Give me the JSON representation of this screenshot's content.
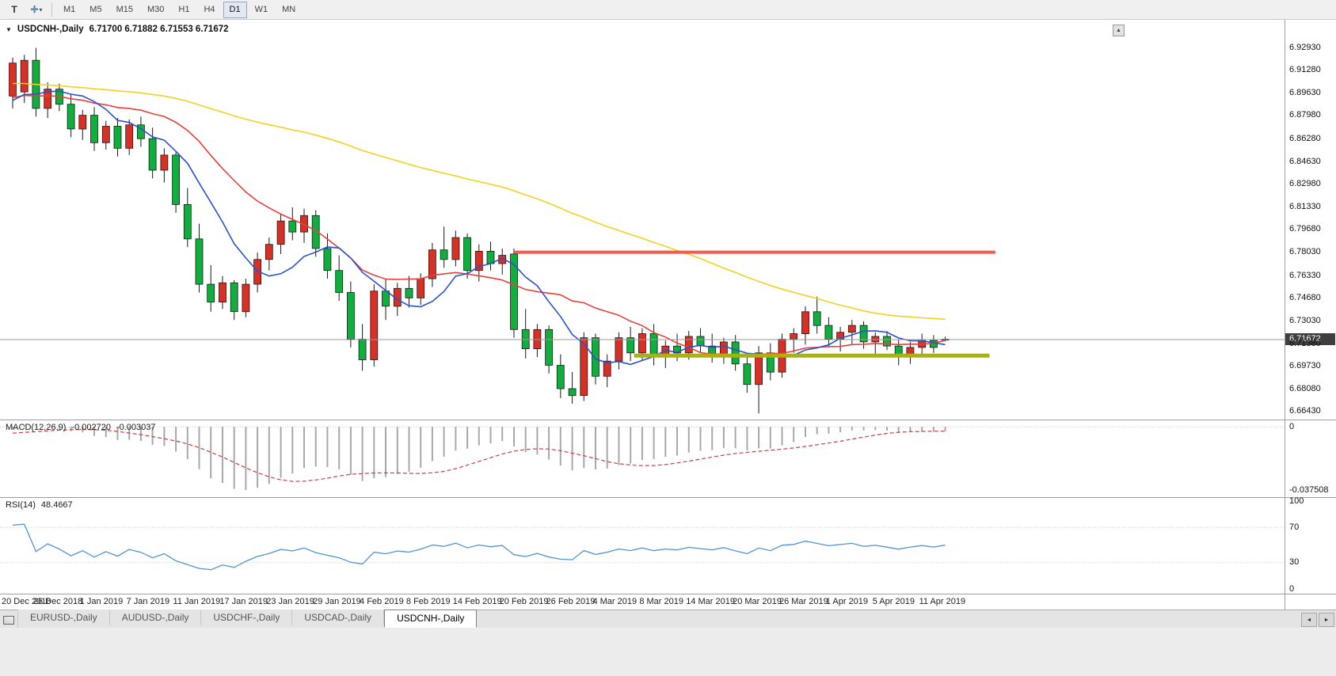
{
  "toolbar": {
    "pointer_tool_glyph": "T",
    "draw_tool_glyph": "✛",
    "dropdown_glyph": "▾",
    "timeframes": [
      "M1",
      "M5",
      "M15",
      "M30",
      "H1",
      "H4",
      "D1",
      "W1",
      "MN"
    ],
    "active_timeframe": "D1"
  },
  "chart": {
    "menu_glyph": "▼",
    "shift_marker_glyph": "▲",
    "title_symbol": "USDCNH-,Daily",
    "title_ohlc": "6.71700 6.71882 6.71553 6.71672",
    "price_axis": {
      "labels": [
        "6.92930",
        "6.91280",
        "6.89630",
        "6.87980",
        "6.86280",
        "6.84630",
        "6.82980",
        "6.81330",
        "6.79680",
        "6.78030",
        "6.76330",
        "6.74680",
        "6.73030",
        "6.71380",
        "6.69730",
        "6.68080",
        "6.66430"
      ],
      "badge": "6.71672"
    }
  },
  "macd": {
    "name": "MACD(12,26,9)",
    "value_main": "-0.002720",
    "value_signal": "-0.003037",
    "axis_zero": "0",
    "axis_min": "-0.037508"
  },
  "rsi": {
    "name": "RSI(14)",
    "value": "48.4667",
    "axis": [
      "100",
      "70",
      "30",
      "0"
    ]
  },
  "time_axis": {
    "labels": [
      "20 Dec 2018",
      "26 Dec 2018",
      "1 Jan 2019",
      "7 Jan 2019",
      "11 Jan 2019",
      "17 Jan 2019",
      "23 Jan 2019",
      "29 Jan 2019",
      "4 Feb 2019",
      "8 Feb 2019",
      "14 Feb 2019",
      "20 Feb 2019",
      "26 Feb 2019",
      "4 Mar 2019",
      "8 Mar 2019",
      "14 Mar 2019",
      "20 Mar 2019",
      "26 Mar 2019",
      "1 Apr 2019",
      "5 Apr 2019",
      "11 Apr 2019"
    ]
  },
  "tabs": {
    "items": [
      "EURUSD-,Daily",
      "AUDUSD-,Daily",
      "USDCHF-,Daily",
      "USDCAD-,Daily",
      "USDCNH-,Daily"
    ],
    "active": "USDCNH-,Daily",
    "scroll_left_glyph": "◄",
    "scroll_right_glyph": "►"
  },
  "chart_data": {
    "type": "candlestick",
    "symbol": "USDCNH",
    "timeframe": "Daily",
    "last": {
      "open": 6.717,
      "high": 6.71882,
      "low": 6.71553,
      "close": 6.71672
    },
    "last_price": 6.71672,
    "price_range": [
      6.6585,
      6.9495
    ],
    "time_axis_label_step": 4,
    "ohlc": [
      [
        6.894,
        6.922,
        6.885,
        6.918
      ],
      [
        6.897,
        6.924,
        6.889,
        6.92
      ],
      [
        6.92,
        6.929,
        6.879,
        6.885
      ],
      [
        6.885,
        6.904,
        6.878,
        6.899
      ],
      [
        6.899,
        6.903,
        6.883,
        6.888
      ],
      [
        6.888,
        6.895,
        6.864,
        6.87
      ],
      [
        6.87,
        6.884,
        6.862,
        6.88
      ],
      [
        6.88,
        6.886,
        6.854,
        6.86
      ],
      [
        6.86,
        6.876,
        6.855,
        6.872
      ],
      [
        6.872,
        6.878,
        6.85,
        6.856
      ],
      [
        6.856,
        6.877,
        6.851,
        6.873
      ],
      [
        6.873,
        6.879,
        6.857,
        6.863
      ],
      [
        6.863,
        6.871,
        6.834,
        6.84
      ],
      [
        6.84,
        6.856,
        6.831,
        6.851
      ],
      [
        6.851,
        6.853,
        6.809,
        6.815
      ],
      [
        6.815,
        6.827,
        6.784,
        6.79
      ],
      [
        6.79,
        6.801,
        6.751,
        6.757
      ],
      [
        6.757,
        6.771,
        6.737,
        6.744
      ],
      [
        6.744,
        6.763,
        6.739,
        6.758
      ],
      [
        6.758,
        6.76,
        6.731,
        6.737
      ],
      [
        6.737,
        6.761,
        6.733,
        6.757
      ],
      [
        6.757,
        6.78,
        6.751,
        6.775
      ],
      [
        6.775,
        6.791,
        6.767,
        6.786
      ],
      [
        6.786,
        6.808,
        6.779,
        6.803
      ],
      [
        6.803,
        6.813,
        6.789,
        6.795
      ],
      [
        6.795,
        6.812,
        6.787,
        6.807
      ],
      [
        6.807,
        6.811,
        6.777,
        6.783
      ],
      [
        6.783,
        6.794,
        6.761,
        6.767
      ],
      [
        6.767,
        6.778,
        6.745,
        6.751
      ],
      [
        6.751,
        6.759,
        6.711,
        6.717
      ],
      [
        6.717,
        6.728,
        6.694,
        6.702
      ],
      [
        6.702,
        6.757,
        6.697,
        6.752
      ],
      [
        6.752,
        6.761,
        6.731,
        6.741
      ],
      [
        6.741,
        6.758,
        6.734,
        6.754
      ],
      [
        6.754,
        6.763,
        6.74,
        6.747
      ],
      [
        6.747,
        6.765,
        6.742,
        6.761
      ],
      [
        6.761,
        6.787,
        6.755,
        6.782
      ],
      [
        6.782,
        6.799,
        6.769,
        6.775
      ],
      [
        6.775,
        6.796,
        6.77,
        6.791
      ],
      [
        6.791,
        6.794,
        6.761,
        6.767
      ],
      [
        6.767,
        6.786,
        6.759,
        6.781
      ],
      [
        6.781,
        6.788,
        6.767,
        6.772
      ],
      [
        6.772,
        6.783,
        6.764,
        6.778
      ],
      [
        6.779,
        6.783,
        6.718,
        6.724
      ],
      [
        6.724,
        6.739,
        6.703,
        6.71
      ],
      [
        6.71,
        6.728,
        6.704,
        6.724
      ],
      [
        6.724,
        6.727,
        6.692,
        6.698
      ],
      [
        6.698,
        6.706,
        6.674,
        6.681
      ],
      [
        6.681,
        6.693,
        6.67,
        6.676
      ],
      [
        6.676,
        6.722,
        6.672,
        6.718
      ],
      [
        6.718,
        6.721,
        6.684,
        6.69
      ],
      [
        6.69,
        6.706,
        6.682,
        6.701
      ],
      [
        6.701,
        6.722,
        6.695,
        6.718
      ],
      [
        6.718,
        6.726,
        6.701,
        6.707
      ],
      [
        6.707,
        6.725,
        6.702,
        6.721
      ],
      [
        6.721,
        6.728,
        6.698,
        6.704
      ],
      [
        6.704,
        6.716,
        6.696,
        6.712
      ],
      [
        6.712,
        6.721,
        6.701,
        6.707
      ],
      [
        6.707,
        6.723,
        6.702,
        6.719
      ],
      [
        6.719,
        6.725,
        6.707,
        6.712
      ],
      [
        6.712,
        6.721,
        6.7,
        6.706
      ],
      [
        6.706,
        6.718,
        6.699,
        6.715
      ],
      [
        6.715,
        6.72,
        6.694,
        6.699
      ],
      [
        6.699,
        6.705,
        6.678,
        6.684
      ],
      [
        6.684,
        6.712,
        6.663,
        6.707
      ],
      [
        6.707,
        6.714,
        6.687,
        6.693
      ],
      [
        6.693,
        6.721,
        6.689,
        6.717
      ],
      [
        6.717,
        6.725,
        6.707,
        6.721
      ],
      [
        6.721,
        6.741,
        6.713,
        6.737
      ],
      [
        6.737,
        6.748,
        6.721,
        6.727
      ],
      [
        6.727,
        6.733,
        6.711,
        6.717
      ],
      [
        6.717,
        6.726,
        6.708,
        6.722
      ],
      [
        6.722,
        6.731,
        6.713,
        6.727
      ],
      [
        6.727,
        6.73,
        6.71,
        6.715
      ],
      [
        6.715,
        6.722,
        6.705,
        6.719
      ],
      [
        6.719,
        6.723,
        6.709,
        6.712
      ],
      [
        6.712,
        6.717,
        6.698,
        6.704
      ],
      [
        6.704,
        6.715,
        6.699,
        6.711
      ],
      [
        6.711,
        6.721,
        6.704,
        6.716
      ],
      [
        6.716,
        6.72,
        6.707,
        6.711
      ],
      [
        6.717,
        6.71882,
        6.71553,
        6.71672
      ]
    ],
    "moving_averages": [
      {
        "name": "fast",
        "period": 8,
        "color": "#2a52cc"
      },
      {
        "name": "medium",
        "period": 17,
        "color": "#e8413a"
      },
      {
        "name": "slow",
        "period": 60,
        "color": "#f2d21f"
      }
    ],
    "objects": [
      {
        "name": "resistance-line",
        "price": 6.7803,
        "from_bar": 43,
        "to_bar": 84.3,
        "color": "#f25c4f",
        "width": 4
      },
      {
        "name": "support-line",
        "price": 6.705,
        "from_bar": 53.3,
        "to_bar": 83.8,
        "color": "#a9b400",
        "width": 5
      }
    ],
    "indicators": {
      "macd": {
        "fast": 12,
        "slow": 26,
        "signal": 9,
        "current_main": -0.00272,
        "current_signal": -0.003037,
        "axis_min": -0.037508
      },
      "rsi": {
        "period": 14,
        "current": 48.4667,
        "levels": [
          70,
          30
        ]
      }
    },
    "colors": {
      "bull": "#d93025",
      "bear": "#0faf3e",
      "wick": "#1a1a1a",
      "macd_hist": "#a8a8a8",
      "macd_signal": "#cc4040",
      "rsi_line": "#4f94d4",
      "bid_line": "#9a9a9a"
    }
  }
}
